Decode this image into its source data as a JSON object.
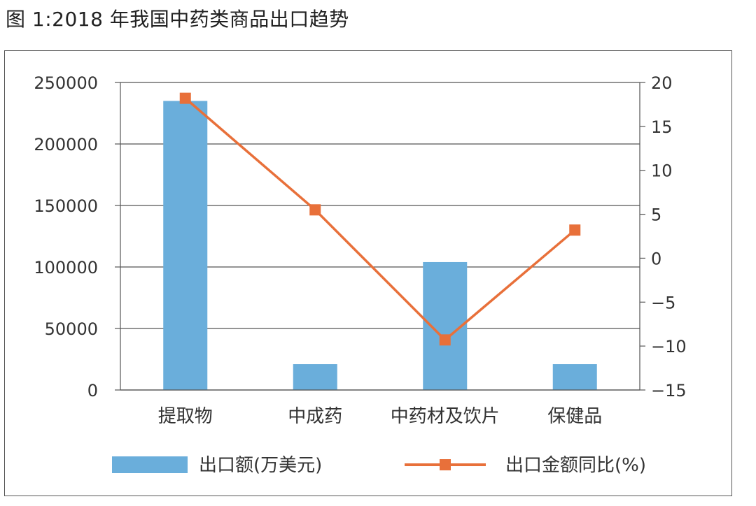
{
  "figure_title": "图 1:2018 年我国中药类商品出口趋势",
  "chart_data": {
    "type": "bar",
    "title": "",
    "categories": [
      "提取物",
      "中成药",
      "中药材及饮片",
      "保健品"
    ],
    "series": [
      {
        "name": "出口额(万美元)",
        "type": "bar",
        "axis": "left",
        "color": "#6aaedb",
        "values": [
          235000,
          21000,
          104000,
          21000
        ]
      },
      {
        "name": "出口金额同比(%)",
        "type": "line",
        "axis": "right",
        "color": "#e8703a",
        "marker": "square",
        "values": [
          18.2,
          5.5,
          -9.3,
          3.2
        ]
      }
    ],
    "y_left": {
      "min": 0,
      "max": 250000,
      "ticks": [
        "0",
        "50000",
        "100000",
        "150000",
        "200000",
        "250000"
      ]
    },
    "y_right": {
      "min": -15,
      "max": 20,
      "ticks": [
        "−15",
        "−10",
        "−5",
        "0",
        "5",
        "10",
        "15",
        "20"
      ]
    },
    "grid": true,
    "legend_position": "bottom"
  }
}
